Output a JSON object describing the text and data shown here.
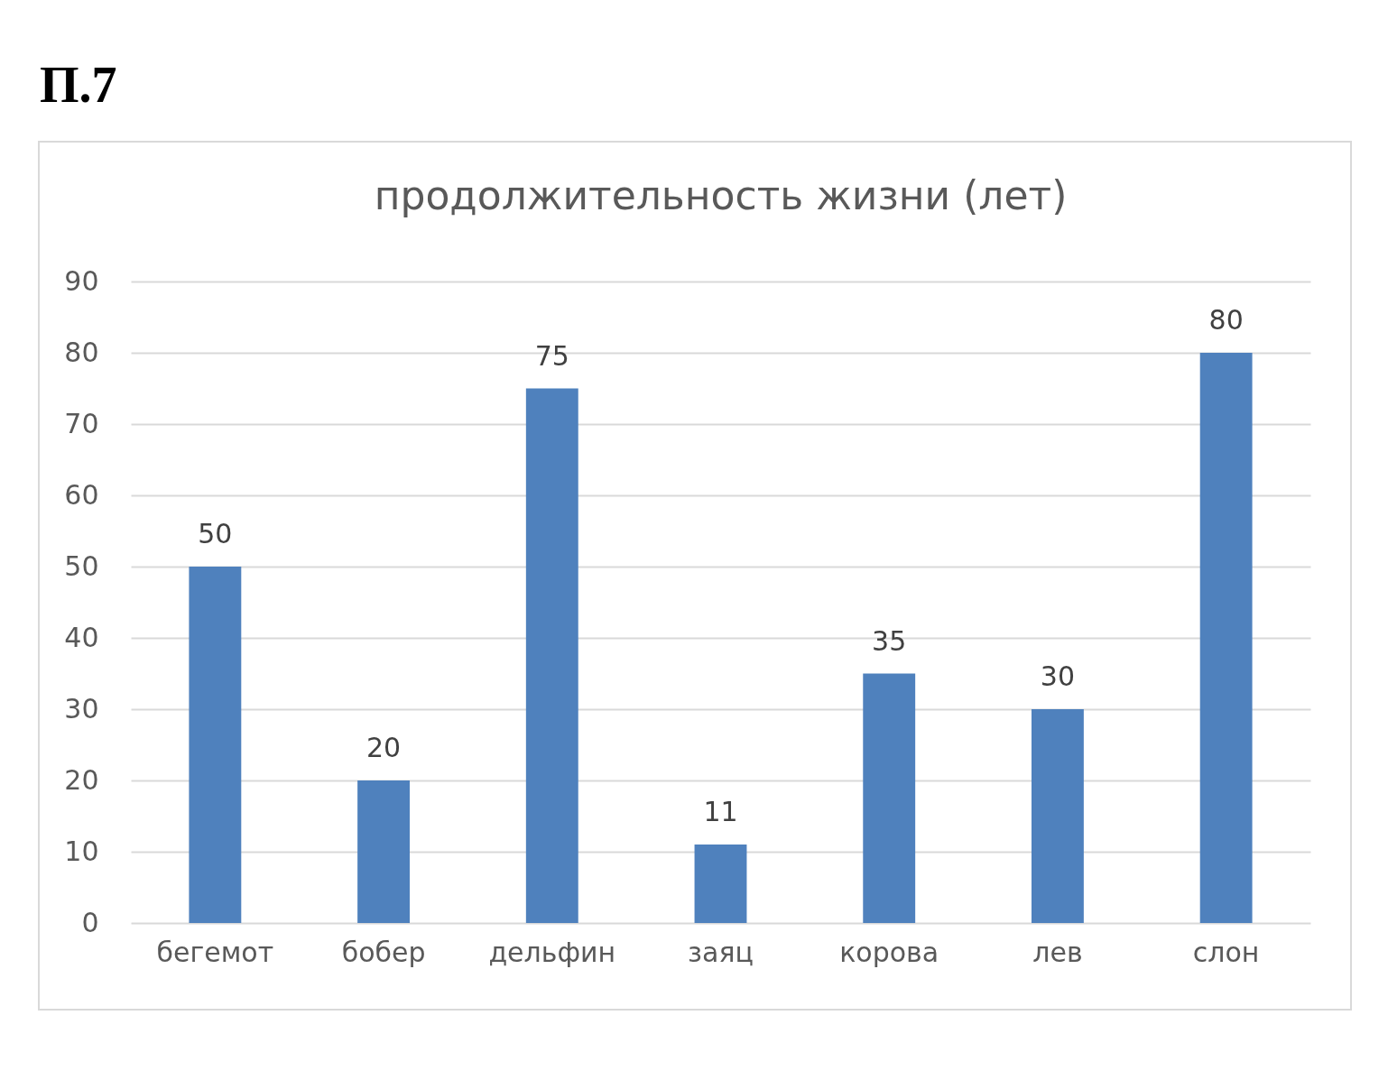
{
  "chart_data": {
    "type": "bar",
    "title": "продолжительность жизни (лет)",
    "annotations": [
      "П.7"
    ],
    "categories": [
      "бегемот",
      "бобер",
      "дельфин",
      "заяц",
      "корова",
      "лев",
      "слон"
    ],
    "values": [
      50,
      20,
      75,
      11,
      35,
      30,
      80
    ],
    "color": "#4f81bd",
    "ylim": [
      0,
      90
    ],
    "yticks": [
      0,
      10,
      20,
      30,
      40,
      50,
      60,
      70,
      80,
      90
    ],
    "grid": "y",
    "data_labels": true
  }
}
